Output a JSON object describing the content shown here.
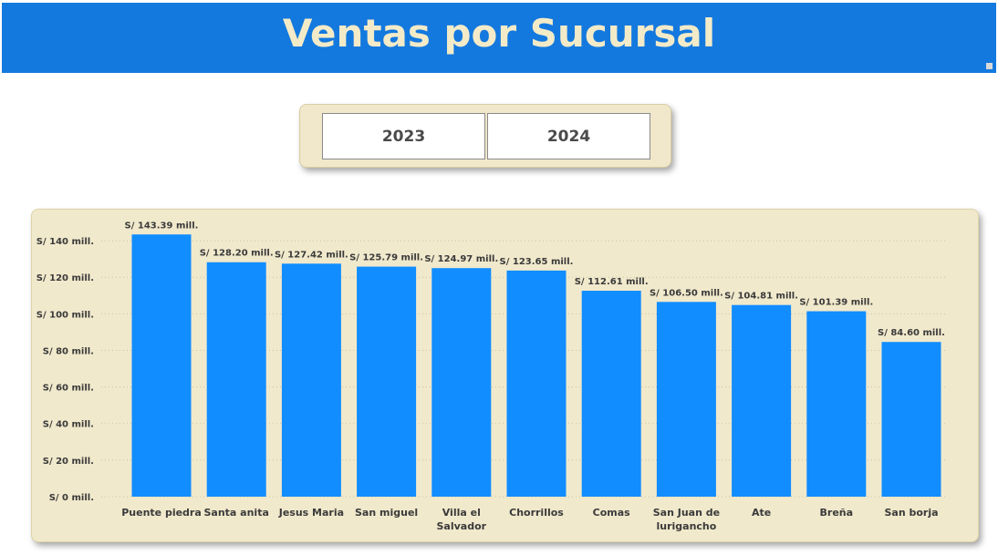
{
  "header": {
    "title": "Ventas por Sucursal"
  },
  "slicer": {
    "years": [
      "2023",
      "2024"
    ]
  },
  "colors": {
    "header_bg": "#1479df",
    "bar": "#118dff",
    "card_bg": "#f1e9cc",
    "title_text": "#f3ebc8"
  },
  "chart_data": {
    "type": "bar",
    "categories": [
      "Puente piedra",
      "Santa anita",
      "Jesus Maria",
      "San miguel",
      "Villa el Salvador",
      "Chorrillos",
      "Comas",
      "San Juan de lurigancho",
      "Ate",
      "Breña",
      "San borja"
    ],
    "values": [
      143.39,
      128.2,
      127.42,
      125.79,
      124.97,
      123.65,
      112.61,
      106.5,
      104.81,
      101.39,
      84.6
    ],
    "data_labels": [
      "S/ 143.39 mill.",
      "S/ 128.20 mill.",
      "S/ 127.42 mill.",
      "S/ 125.79 mill.",
      "S/ 124.97 mill.",
      "S/ 123.65 mill.",
      "S/ 112.61 mill.",
      "S/ 106.50 mill.",
      "S/ 104.81 mill.",
      "S/ 101.39 mill.",
      "S/ 84.60 mill."
    ],
    "category_lines": [
      [
        "Puente piedra"
      ],
      [
        "Santa anita"
      ],
      [
        "Jesus Maria"
      ],
      [
        "San miguel"
      ],
      [
        "Villa el",
        "Salvador"
      ],
      [
        "Chorrillos"
      ],
      [
        "Comas"
      ],
      [
        "San Juan de",
        "lurigancho"
      ],
      [
        "Ate"
      ],
      [
        "Breña"
      ],
      [
        "San borja"
      ]
    ],
    "y_ticks": [
      0,
      20,
      40,
      60,
      80,
      100,
      120,
      140
    ],
    "y_tick_labels": [
      "S/ 0 mill.",
      "S/ 20 mill.",
      "S/ 40 mill.",
      "S/ 60 mill.",
      "S/ 80 mill.",
      "S/ 100 mill.",
      "S/ 120 mill.",
      "S/ 140 mill."
    ],
    "ylim": [
      0,
      150
    ],
    "grid": true,
    "legend": "none"
  }
}
